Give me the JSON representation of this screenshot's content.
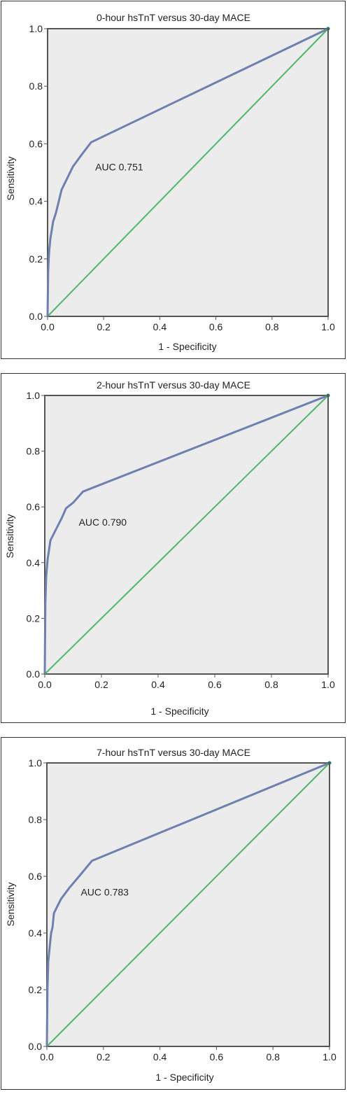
{
  "colors": {
    "roc": "#6f7fb0",
    "reference": "#4db86a",
    "plot_bg": "#ececec",
    "frame": "#555555"
  },
  "chart_data": [
    {
      "type": "line",
      "title": "0-hour hsTnT versus 30-day MACE",
      "xlabel": "1 - Specificity",
      "ylabel": "Sensitivity",
      "xlim": [
        0,
        1
      ],
      "ylim": [
        0,
        1
      ],
      "xticks": [
        "0.0",
        "0.2",
        "0.4",
        "0.6",
        "0.8",
        "1.0"
      ],
      "yticks": [
        "0.0",
        "0.2",
        "0.4",
        "0.6",
        "0.8",
        "1.0"
      ],
      "annotation": "AUC 0.751",
      "annotation_pos": [
        0.17,
        0.52
      ],
      "series": [
        {
          "x": [
            0,
            0.002,
            0.004,
            0.006,
            0.01,
            0.015,
            0.02,
            0.03,
            0.05,
            0.09,
            0.12,
            0.155,
            1.0
          ],
          "y": [
            0,
            0.15,
            0.2,
            0.23,
            0.27,
            0.3,
            0.33,
            0.36,
            0.44,
            0.52,
            0.56,
            0.605,
            1.0
          ]
        },
        {
          "x": [
            0,
            1
          ],
          "y": [
            0,
            1
          ]
        }
      ]
    },
    {
      "type": "line",
      "title": "2-hour hsTnT versus 30-day MACE",
      "xlabel": "1 - Specificity",
      "ylabel": "Sensitivity",
      "xlim": [
        0,
        1
      ],
      "ylim": [
        0,
        1
      ],
      "xticks": [
        "0.0",
        "0.2",
        "0.4",
        "0.6",
        "0.8",
        "1.0"
      ],
      "yticks": [
        "0.0",
        "0.2",
        "0.4",
        "0.6",
        "0.8",
        "1.0"
      ],
      "annotation": "AUC 0.790",
      "annotation_pos": [
        0.12,
        0.545
      ],
      "series": [
        {
          "x": [
            0,
            0.002,
            0.005,
            0.01,
            0.02,
            0.04,
            0.06,
            0.075,
            0.1,
            0.135,
            1.0
          ],
          "y": [
            0,
            0.25,
            0.35,
            0.41,
            0.48,
            0.52,
            0.56,
            0.595,
            0.615,
            0.655,
            1.0
          ]
        },
        {
          "x": [
            0,
            1
          ],
          "y": [
            0,
            1
          ]
        }
      ]
    },
    {
      "type": "line",
      "title": "7-hour hsTnT versus 30-day MACE",
      "xlabel": "1 - Specificity",
      "ylabel": "Sensitivity",
      "xlim": [
        0,
        1
      ],
      "ylim": [
        0,
        1
      ],
      "xticks": [
        "0.0",
        "0.2",
        "0.4",
        "0.6",
        "0.8",
        "1.0"
      ],
      "yticks": [
        "0.0",
        "0.2",
        "0.4",
        "0.6",
        "0.8",
        "1.0"
      ],
      "annotation": "AUC 0.783",
      "annotation_pos": [
        0.12,
        0.545
      ],
      "series": [
        {
          "x": [
            0,
            0.002,
            0.005,
            0.01,
            0.015,
            0.02,
            0.025,
            0.035,
            0.05,
            0.08,
            0.11,
            0.16,
            1.0
          ],
          "y": [
            0,
            0.2,
            0.3,
            0.35,
            0.4,
            0.42,
            0.47,
            0.49,
            0.52,
            0.56,
            0.595,
            0.655,
            1.0
          ]
        },
        {
          "x": [
            0,
            1
          ],
          "y": [
            0,
            1
          ]
        }
      ]
    }
  ]
}
